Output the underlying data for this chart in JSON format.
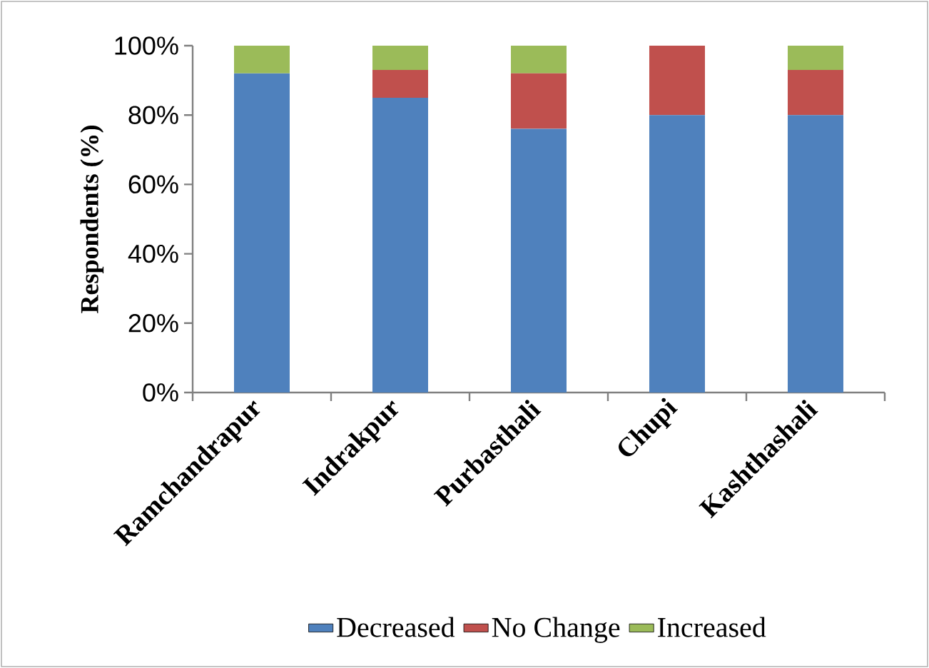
{
  "chart_data": {
    "type": "bar",
    "stacked": true,
    "ylabel": "Respondents (%)",
    "categories": [
      "Ramchandrapur",
      "Indrakpur",
      "Purbasthali",
      "Chupi",
      "Kashthashali"
    ],
    "series": [
      {
        "name": "Decreased",
        "color": "#4f81bd",
        "values": [
          92,
          85,
          76,
          80,
          80
        ]
      },
      {
        "name": "No Change",
        "color": "#c0504d",
        "values": [
          0,
          8,
          16,
          20,
          13
        ]
      },
      {
        "name": "Increased",
        "color": "#9bbb59",
        "values": [
          8,
          7,
          8,
          0,
          7
        ]
      }
    ],
    "ylim": [
      0,
      100
    ],
    "yticks": [
      {
        "value": 0,
        "label": "0%"
      },
      {
        "value": 20,
        "label": "20%"
      },
      {
        "value": 40,
        "label": "40%"
      },
      {
        "value": 60,
        "label": "60%"
      },
      {
        "value": 80,
        "label": "80%"
      },
      {
        "value": 100,
        "label": "100%"
      }
    ],
    "grid": false,
    "legend": "bottom"
  }
}
